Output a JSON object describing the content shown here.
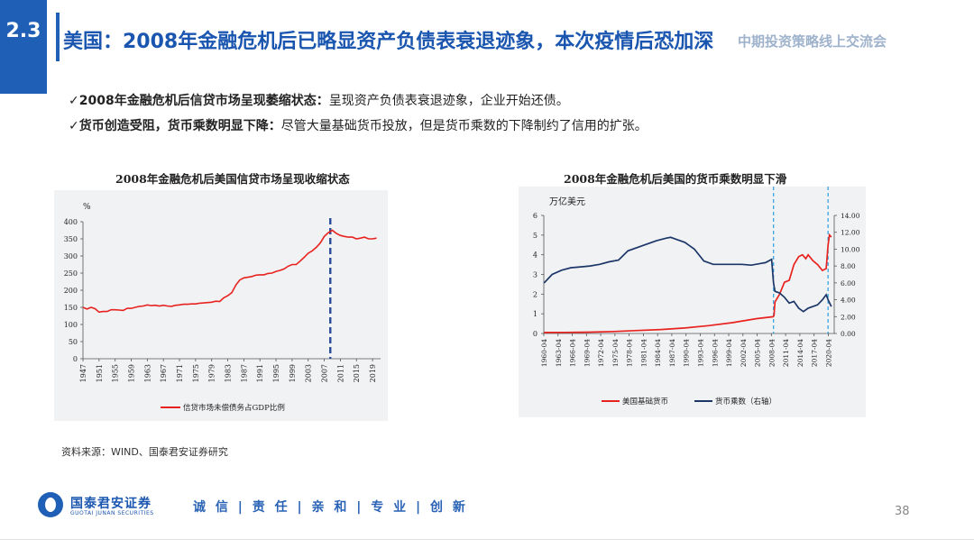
{
  "header": {
    "section_number": "2.3",
    "title": "美国：2008年金融危机后已略显资产负债表衰退迹象，本次疫情后恐加深",
    "ghost_text": "中期投资策略线上交流会"
  },
  "bullets": [
    {
      "check": "✓",
      "bold": "2008年金融危机后信贷市场呈现萎缩状态：",
      "text": "呈现资产负债表衰退迹象，企业开始还债。"
    },
    {
      "check": "✓",
      "bold": "货币创造受阻，货币乘数明显下降：",
      "text": "尽管大量基础货币投放，但是货币乘数的下降制约了信用的扩张。"
    }
  ],
  "chart_data": [
    {
      "type": "line",
      "title": "2008年金融危机后美国信贷市场呈现收缩状态",
      "ylabel": "%",
      "ylim": [
        0,
        400
      ],
      "yticks": [
        "0",
        "50",
        "100",
        "150",
        "200",
        "250",
        "300",
        "350",
        "400"
      ],
      "xlim": [
        1947,
        2021
      ],
      "xticks": [
        "1947",
        "1951",
        "1955",
        "1959",
        "1963",
        "1967",
        "1971",
        "1975",
        "1979",
        "1983",
        "1987",
        "1991",
        "1995",
        "1999",
        "2003",
        "2007",
        "2011",
        "2015",
        "2019"
      ],
      "vline": 2008.5,
      "legend_position": "bottom",
      "series": [
        {
          "name": "信贷市场未偿债务占GDP比例",
          "color": "#e8231f",
          "points": [
            [
              1947,
              150
            ],
            [
              1948,
              145
            ],
            [
              1949,
              150
            ],
            [
              1950,
              146
            ],
            [
              1951,
              136
            ],
            [
              1952,
              138
            ],
            [
              1953,
              138
            ],
            [
              1954,
              143
            ],
            [
              1955,
              143
            ],
            [
              1956,
              142
            ],
            [
              1957,
              141
            ],
            [
              1958,
              147
            ],
            [
              1959,
              147
            ],
            [
              1960,
              150
            ],
            [
              1961,
              153
            ],
            [
              1962,
              154
            ],
            [
              1963,
              157
            ],
            [
              1964,
              155
            ],
            [
              1965,
              156
            ],
            [
              1966,
              154
            ],
            [
              1967,
              156
            ],
            [
              1968,
              154
            ],
            [
              1969,
              153
            ],
            [
              1970,
              156
            ],
            [
              1971,
              157
            ],
            [
              1972,
              159
            ],
            [
              1973,
              159
            ],
            [
              1974,
              160
            ],
            [
              1975,
              160
            ],
            [
              1976,
              162
            ],
            [
              1977,
              163
            ],
            [
              1978,
              164
            ],
            [
              1979,
              165
            ],
            [
              1980,
              168
            ],
            [
              1981,
              167
            ],
            [
              1982,
              178
            ],
            [
              1983,
              184
            ],
            [
              1984,
              193
            ],
            [
              1985,
              215
            ],
            [
              1986,
              230
            ],
            [
              1987,
              236
            ],
            [
              1988,
              238
            ],
            [
              1989,
              240
            ],
            [
              1990,
              244
            ],
            [
              1991,
              245
            ],
            [
              1992,
              245
            ],
            [
              1993,
              249
            ],
            [
              1994,
              250
            ],
            [
              1995,
              255
            ],
            [
              1996,
              258
            ],
            [
              1997,
              262
            ],
            [
              1998,
              270
            ],
            [
              1999,
              275
            ],
            [
              2000,
              275
            ],
            [
              2001,
              285
            ],
            [
              2002,
              296
            ],
            [
              2003,
              308
            ],
            [
              2004,
              315
            ],
            [
              2005,
              325
            ],
            [
              2006,
              338
            ],
            [
              2007,
              357
            ],
            [
              2008,
              368
            ],
            [
              2009,
              375
            ],
            [
              2010,
              366
            ],
            [
              2011,
              360
            ],
            [
              2012,
              357
            ],
            [
              2013,
              355
            ],
            [
              2014,
              355
            ],
            [
              2015,
              350
            ],
            [
              2016,
              352
            ],
            [
              2017,
              355
            ],
            [
              2018,
              350
            ],
            [
              2019,
              350
            ],
            [
              2020,
              352
            ]
          ]
        }
      ]
    },
    {
      "type": "line",
      "title": "2008年金融危机后美国的货币乘数明显下滑",
      "ylabel": "万亿美元",
      "ylim": [
        0,
        6
      ],
      "yticks": [
        "0",
        "1",
        "2",
        "3",
        "4",
        "5",
        "6"
      ],
      "y2lim": [
        0,
        14
      ],
      "y2ticks": [
        "0.00",
        "2.00",
        "4.00",
        "6.00",
        "8.00",
        "10.00",
        "12.00",
        "14.00"
      ],
      "xlim": [
        1960.25,
        2021.5
      ],
      "xticks": [
        "1960-04",
        "1963-04",
        "1966-04",
        "1969-04",
        "1972-04",
        "1975-04",
        "1978-04",
        "1981-04",
        "1984-04",
        "1987-04",
        "1990-04",
        "1993-04",
        "1996-04",
        "1999-04",
        "2002-04",
        "2005-04",
        "2008-04",
        "2011-04",
        "2014-04",
        "2017-04",
        "2020-04"
      ],
      "vlines": [
        2008.7,
        2020.2
      ],
      "legend_position": "bottom",
      "series": [
        {
          "name": "美国基础货币",
          "color": "#e8231f",
          "axis": "left",
          "points": [
            [
              1960.3,
              0.05
            ],
            [
              1965,
              0.055
            ],
            [
              1970,
              0.07
            ],
            [
              1975,
              0.1
            ],
            [
              1980,
              0.15
            ],
            [
              1985,
              0.2
            ],
            [
              1990,
              0.28
            ],
            [
              1995,
              0.4
            ],
            [
              2000,
              0.55
            ],
            [
              2005,
              0.75
            ],
            [
              2008.6,
              0.85
            ],
            [
              2008.8,
              0.9
            ],
            [
              2009,
              1.6
            ],
            [
              2010,
              2.0
            ],
            [
              2011,
              2.6
            ],
            [
              2012,
              2.7
            ],
            [
              2013,
              3.5
            ],
            [
              2014,
              3.9
            ],
            [
              2014.8,
              4.0
            ],
            [
              2015.5,
              3.8
            ],
            [
              2016,
              4.0
            ],
            [
              2017,
              3.7
            ],
            [
              2018,
              3.5
            ],
            [
              2019,
              3.2
            ],
            [
              2019.8,
              3.3
            ],
            [
              2020.2,
              4.5
            ],
            [
              2020.5,
              5.0
            ],
            [
              2020.9,
              4.9
            ]
          ]
        },
        {
          "name": "货币乘数（右轴）",
          "color": "#1c3668",
          "axis": "right",
          "points": [
            [
              1960.3,
              6.0
            ],
            [
              1962,
              7.0
            ],
            [
              1964,
              7.5
            ],
            [
              1966,
              7.8
            ],
            [
              1968,
              7.9
            ],
            [
              1970,
              8.0
            ],
            [
              1972,
              8.2
            ],
            [
              1974,
              8.5
            ],
            [
              1976,
              8.7
            ],
            [
              1978,
              9.8
            ],
            [
              1980,
              10.2
            ],
            [
              1982,
              10.6
            ],
            [
              1984,
              11.0
            ],
            [
              1986,
              11.3
            ],
            [
              1987,
              11.4
            ],
            [
              1988,
              11.2
            ],
            [
              1990,
              10.8
            ],
            [
              1992,
              10.0
            ],
            [
              1994,
              8.6
            ],
            [
              1996,
              8.2
            ],
            [
              1998,
              8.2
            ],
            [
              2000,
              8.2
            ],
            [
              2002,
              8.2
            ],
            [
              2004,
              8.1
            ],
            [
              2006,
              8.3
            ],
            [
              2007,
              8.4
            ],
            [
              2008.3,
              8.8
            ],
            [
              2008.7,
              6.0
            ],
            [
              2009,
              5.0
            ],
            [
              2010,
              4.8
            ],
            [
              2011,
              4.3
            ],
            [
              2012,
              3.6
            ],
            [
              2013,
              3.8
            ],
            [
              2014,
              3.0
            ],
            [
              2015,
              2.6
            ],
            [
              2016,
              3.0
            ],
            [
              2017,
              3.2
            ],
            [
              2018,
              3.4
            ],
            [
              2019,
              4.0
            ],
            [
              2019.8,
              4.6
            ],
            [
              2020.2,
              4.0
            ],
            [
              2020.9,
              3.2
            ]
          ]
        }
      ]
    }
  ],
  "source": "资料来源：WIND、国泰君安证券研究",
  "footer": {
    "logo_cn": "国泰君安证券",
    "logo_en": "GUOTAI JUNAN SECURITIES",
    "motto": "诚 信 | 责 任 | 亲 和 | 专 业 | 创 新",
    "page_number": "38"
  }
}
